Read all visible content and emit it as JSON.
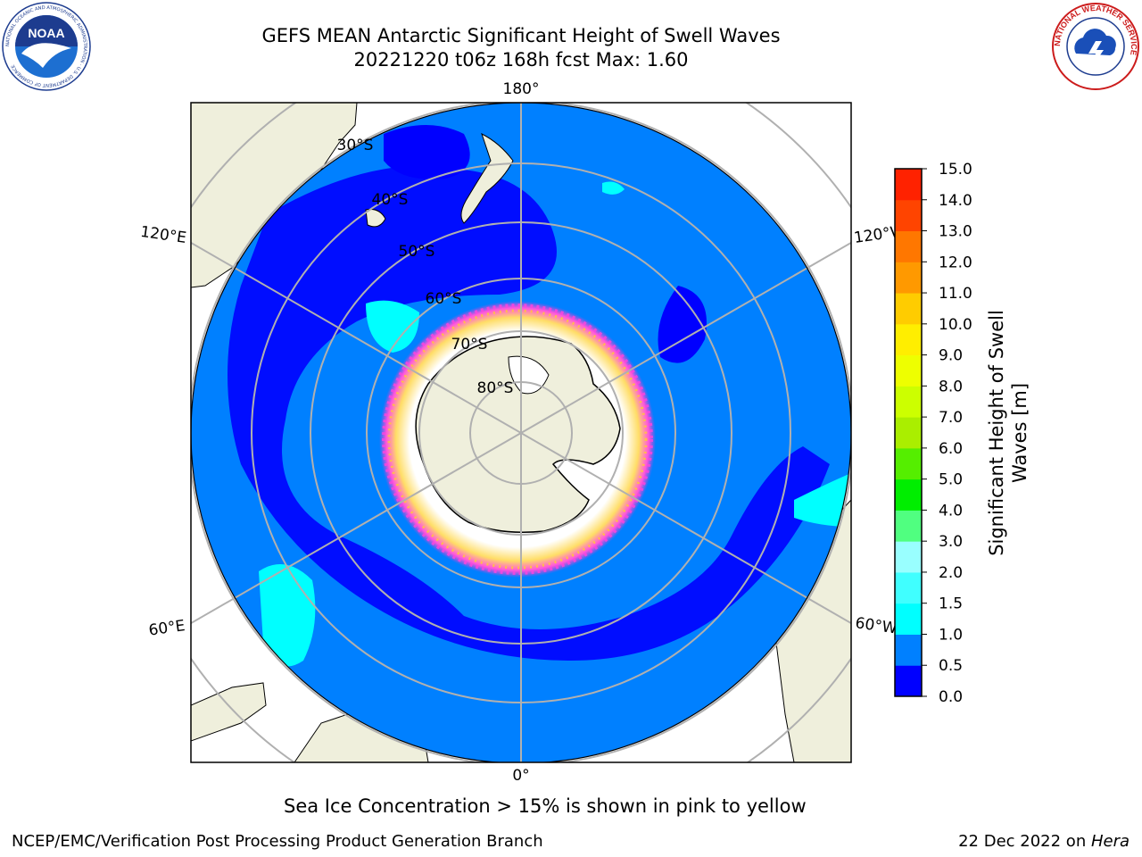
{
  "title": {
    "line1": "GEFS MEAN Antarctic Significant Height of Swell Waves",
    "line2": "20221220 t06z 168h fcst   Max: 1.60"
  },
  "map": {
    "projection": "south-polar-stereographic",
    "longitude_labels": [
      "180°",
      "120°E",
      "120°W",
      "60°E",
      "60°W",
      "0°"
    ],
    "latitude_labels": [
      "30°S",
      "40°S",
      "50°S",
      "60°S",
      "70°S",
      "80°S"
    ],
    "colors": {
      "ocean_base": "#0080ff",
      "ocean_low": "#0000ff",
      "ocean_mid": "#00ffff",
      "land": "#efefdc",
      "grid": "#b0b0b0",
      "ice_pink": "#ff33cc",
      "ice_yellow": "#ffcc33"
    }
  },
  "colorbar": {
    "label_line1": "Significant Height of Swell",
    "label_line2": "Waves [m]",
    "ticks": [
      "0.0",
      "0.5",
      "1.0",
      "1.5",
      "2.0",
      "3.0",
      "4.0",
      "5.0",
      "6.0",
      "7.0",
      "8.0",
      "9.0",
      "10.0",
      "11.0",
      "12.0",
      "13.0",
      "14.0",
      "15.0"
    ],
    "colors": [
      "#0000ff",
      "#0080ff",
      "#00ffff",
      "#40ffff",
      "#99ffff",
      "#50ff80",
      "#00ee00",
      "#55ee00",
      "#aaee00",
      "#ccff00",
      "#eeff00",
      "#ffee00",
      "#ffcc00",
      "#ff9900",
      "#ff7700",
      "#ff4400",
      "#ff2200"
    ]
  },
  "caption": "Sea Ice Concentration > 15% is shown in pink to yellow",
  "footer": {
    "left": "NCEP/EMC/Verification Post Processing Product Generation Branch",
    "date": "22 Dec 2022 on ",
    "host": "Hera"
  },
  "logos": {
    "noaa_text": "NOAA",
    "noaa_ring": "NATIONAL OCEANIC AND ATMOSPHERIC ADMINISTRATION · U.S. DEPARTMENT OF COMMERCE",
    "nws_ring": "NATIONAL WEATHER SERVICE"
  }
}
